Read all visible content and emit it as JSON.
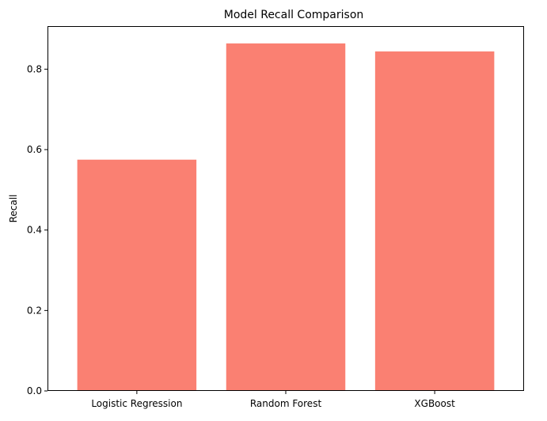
{
  "chart_data": {
    "type": "bar",
    "title": "Model Recall Comparison",
    "xlabel": "",
    "ylabel": "Recall",
    "categories": [
      "Logistic Regression",
      "Random Forest",
      "XGBoost"
    ],
    "values": [
      0.575,
      0.864,
      0.844
    ],
    "ylim": [
      0,
      0.907
    ],
    "yticks": [
      0.0,
      0.2,
      0.4,
      0.6,
      0.8
    ],
    "ytick_labels": [
      "0.0",
      "0.2",
      "0.4",
      "0.6",
      "0.8"
    ],
    "grid": false,
    "legend": "none",
    "bar_color": "#fa8072"
  }
}
